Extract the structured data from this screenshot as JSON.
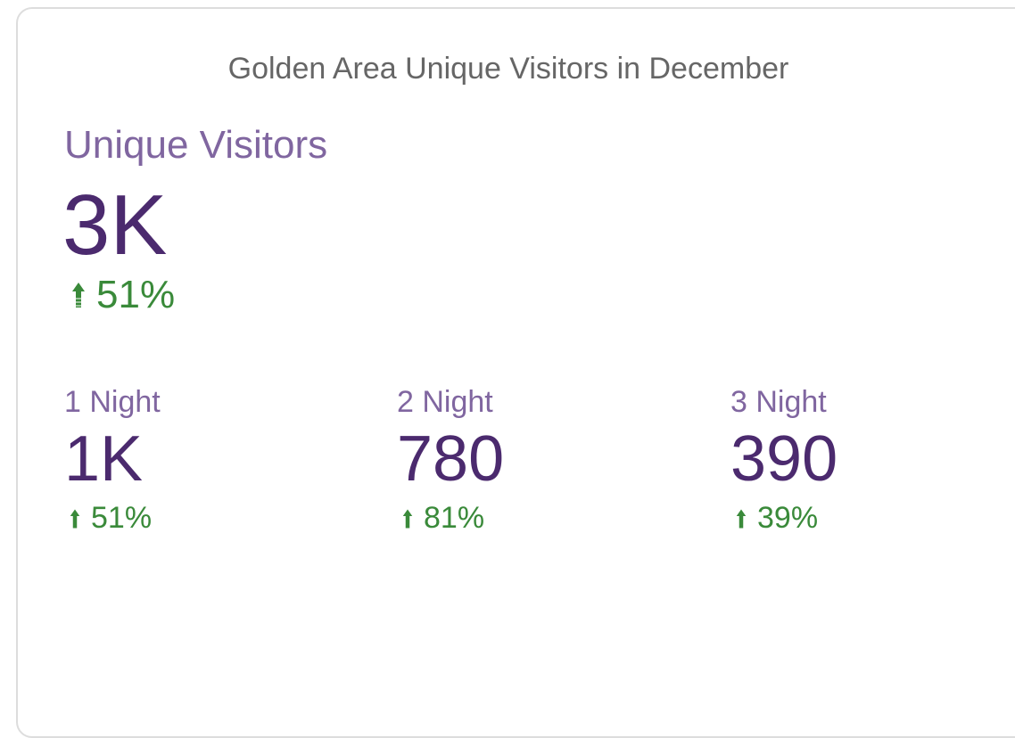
{
  "card": {
    "title": "Golden Area Unique Visitors in December",
    "main": {
      "label": "Unique Visitors",
      "value": "3K",
      "change": "51%"
    },
    "items": [
      {
        "label": "1 Night",
        "value": "1K",
        "change": "51%"
      },
      {
        "label": "2 Night",
        "value": "780",
        "change": "81%"
      },
      {
        "label": "3 Night",
        "value": "390",
        "change": "39%"
      }
    ]
  }
}
